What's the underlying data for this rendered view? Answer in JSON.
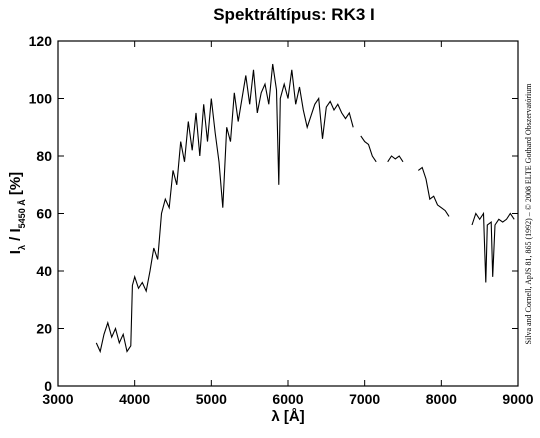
{
  "chart_data": {
    "type": "line",
    "title": "Spektráltípus: RK3 I",
    "xlabel": "λ [Å]",
    "ylabel": [
      "I",
      "λ",
      " / I",
      "5450 Å",
      " [%]"
    ],
    "note": "Silva and Cornell, ApJS 81, 865 (1992) – © 2008 ELTE Gothard Obszervatórium",
    "color": "#000000",
    "xlim": [
      3000,
      9000
    ],
    "xticks": [
      3000,
      4000,
      5000,
      6000,
      7000,
      8000,
      9000
    ],
    "ylim": [
      0,
      120
    ],
    "yticks": [
      0,
      20,
      40,
      60,
      80,
      100,
      120
    ],
    "x": [
      3500,
      3550,
      3600,
      3650,
      3700,
      3750,
      3800,
      3850,
      3900,
      3950,
      3970,
      4000,
      4050,
      4100,
      4150,
      4200,
      4250,
      4300,
      4350,
      4400,
      4450,
      4500,
      4550,
      4600,
      4650,
      4700,
      4750,
      4800,
      4850,
      4900,
      4950,
      5000,
      5050,
      5100,
      5150,
      5200,
      5250,
      5300,
      5350,
      5400,
      5450,
      5500,
      5550,
      5600,
      5650,
      5700,
      5750,
      5800,
      5850,
      5880,
      5900,
      5950,
      6000,
      6050,
      6100,
      6150,
      6200,
      6250,
      6300,
      6350,
      6400,
      6450,
      6500,
      6550,
      6600,
      6650,
      6700,
      6750,
      6800,
      6850,
      6900,
      6950,
      7000,
      7050,
      7100,
      7150,
      7200,
      7300,
      7350,
      7400,
      7450,
      7500,
      7600,
      7700,
      7750,
      7800,
      7850,
      7900,
      7950,
      8000,
      8050,
      8100,
      8250,
      8400,
      8450,
      8500,
      8550,
      8580,
      8600,
      8650,
      8670,
      8700,
      8750,
      8800,
      8850,
      8900,
      8950
    ],
    "values": [
      15,
      12,
      18,
      22,
      17,
      20,
      15,
      18,
      12,
      14,
      35,
      38,
      34,
      36,
      33,
      40,
      48,
      44,
      60,
      65,
      62,
      75,
      70,
      85,
      78,
      92,
      82,
      95,
      80,
      98,
      85,
      100,
      88,
      78,
      62,
      90,
      85,
      102,
      92,
      100,
      108,
      98,
      110,
      95,
      102,
      105,
      98,
      112,
      103,
      70,
      100,
      105,
      100,
      110,
      98,
      104,
      96,
      90,
      94,
      98,
      100,
      86,
      97,
      99,
      96,
      98,
      95,
      93,
      95,
      90,
      null,
      87,
      85,
      84,
      80,
      78,
      null,
      78,
      80,
      79,
      80,
      78,
      null,
      75,
      76,
      72,
      65,
      66,
      63,
      62,
      61,
      59,
      null,
      56,
      60,
      58,
      60,
      36,
      56,
      57,
      38,
      56,
      58,
      57,
      58,
      60,
      58
    ]
  }
}
